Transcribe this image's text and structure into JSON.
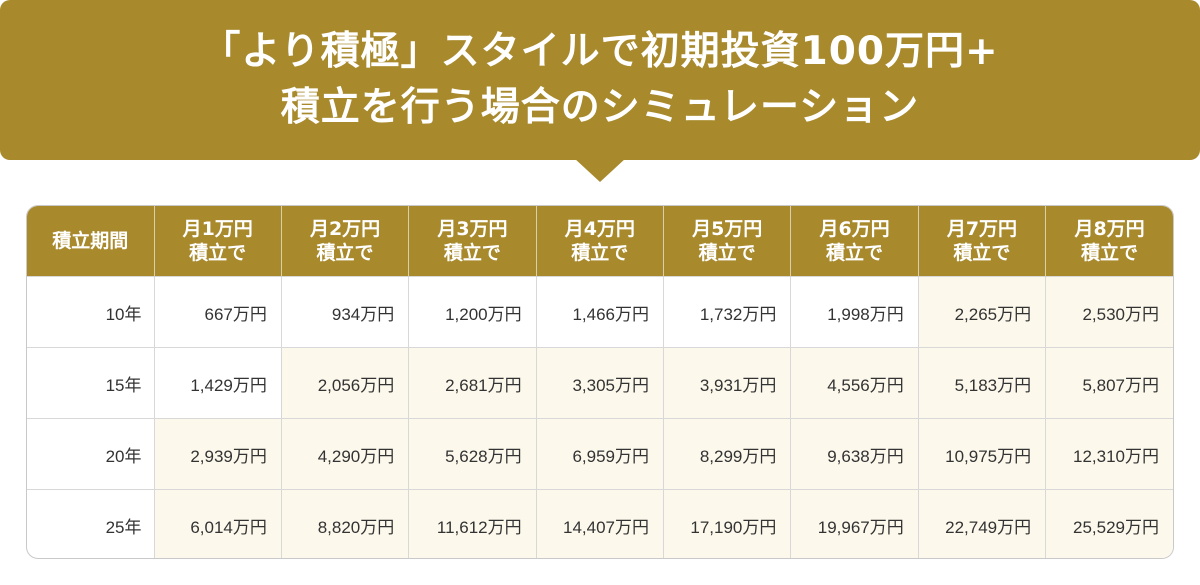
{
  "colors": {
    "gold": "#a8892c",
    "highlight_cell": "#fcf8ec",
    "text": "#333333"
  },
  "banner": {
    "line1": "「より積極」スタイルで初期投資100万円+",
    "line2": "積立を行う場合のシミュレーション"
  },
  "table": {
    "header_period": "積立期間",
    "columns": [
      {
        "line1": "月1万円",
        "line2": "積立で"
      },
      {
        "line1": "月2万円",
        "line2": "積立で"
      },
      {
        "line1": "月3万円",
        "line2": "積立で"
      },
      {
        "line1": "月4万円",
        "line2": "積立で"
      },
      {
        "line1": "月5万円",
        "line2": "積立で"
      },
      {
        "line1": "月6万円",
        "line2": "積立で"
      },
      {
        "line1": "月7万円",
        "line2": "積立で"
      },
      {
        "line1": "月8万円",
        "line2": "積立で"
      }
    ],
    "rows": [
      {
        "period": "10年",
        "values": [
          "667万円",
          "934万円",
          "1,200万円",
          "1,466万円",
          "1,732万円",
          "1,998万円",
          "2,265万円",
          "2,530万円"
        ],
        "highlighted": [
          false,
          false,
          false,
          false,
          false,
          false,
          true,
          true
        ]
      },
      {
        "period": "15年",
        "values": [
          "1,429万円",
          "2,056万円",
          "2,681万円",
          "3,305万円",
          "3,931万円",
          "4,556万円",
          "5,183万円",
          "5,807万円"
        ],
        "highlighted": [
          false,
          true,
          true,
          true,
          true,
          true,
          true,
          true
        ]
      },
      {
        "period": "20年",
        "values": [
          "2,939万円",
          "4,290万円",
          "5,628万円",
          "6,959万円",
          "8,299万円",
          "9,638万円",
          "10,975万円",
          "12,310万円"
        ],
        "highlighted": [
          true,
          true,
          true,
          true,
          true,
          true,
          true,
          true
        ]
      },
      {
        "period": "25年",
        "values": [
          "6,014万円",
          "8,820万円",
          "11,612万円",
          "14,407万円",
          "17,190万円",
          "19,967万円",
          "22,749万円",
          "25,529万円"
        ],
        "highlighted": [
          true,
          true,
          true,
          true,
          true,
          true,
          true,
          true
        ]
      }
    ]
  }
}
